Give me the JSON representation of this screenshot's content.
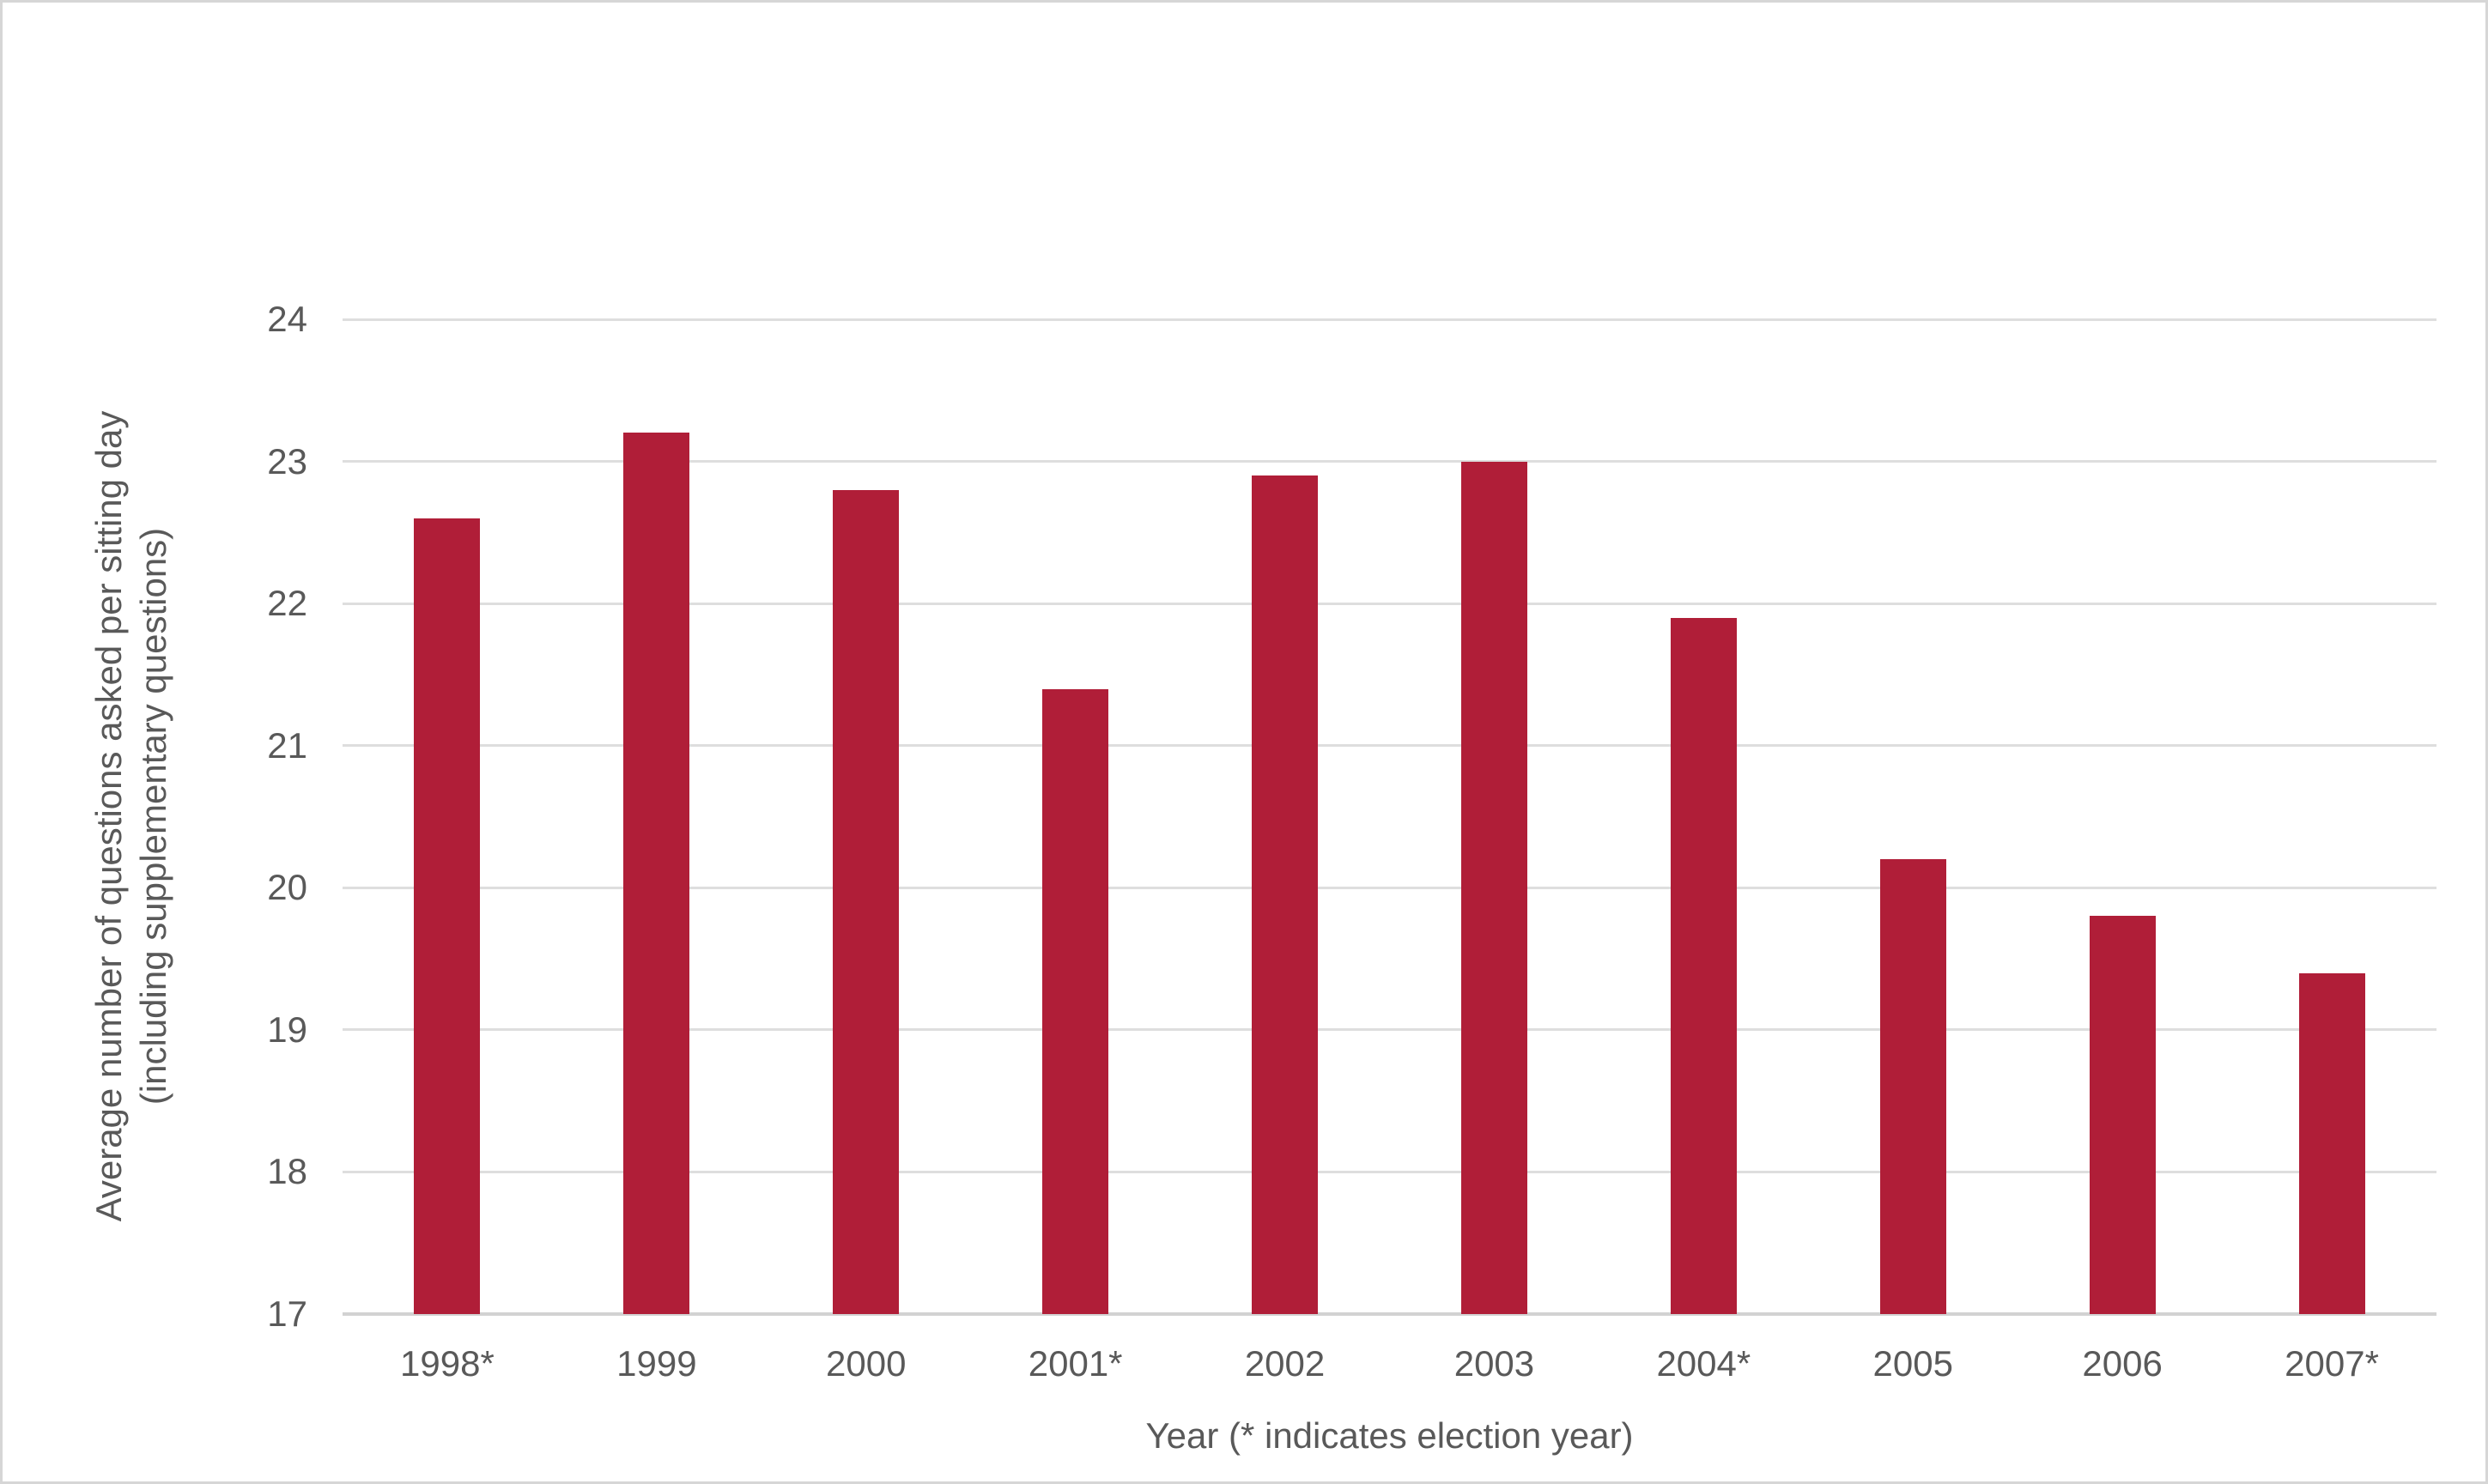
{
  "chart_data": {
    "type": "bar",
    "title": "",
    "categories": [
      "1998*",
      "1999",
      "2000",
      "2001*",
      "2002",
      "2003",
      "2004*",
      "2005",
      "2006",
      "2007*"
    ],
    "values": [
      22.6,
      23.2,
      22.8,
      21.4,
      22.9,
      23.0,
      21.9,
      20.2,
      19.8,
      19.4
    ],
    "xlabel": "Year (* indicates election year)",
    "ylabel": "Average number of questions asked per sitting day (including supplementary questions)",
    "ylabel_line1": "Average number of questions asked per sitting day",
    "ylabel_line2": "(including supplementary questions)",
    "ylim": [
      17,
      24
    ],
    "yticks": [
      17,
      18,
      19,
      20,
      21,
      22,
      23,
      24
    ],
    "grid": "horizontal",
    "legend": "none",
    "bar_color": "#b01e38",
    "text_color": "#595959",
    "gridline_color": "#dedede",
    "axis_line_color": "#d2d2d2"
  }
}
